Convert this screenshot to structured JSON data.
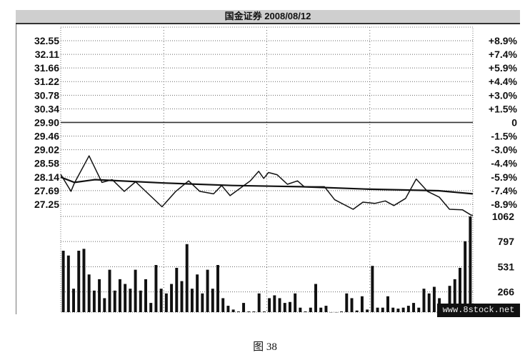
{
  "chart_data": {
    "type": "line",
    "title": "国金证券 2008/08/12",
    "prev_close": 29.9,
    "price_axis": {
      "ticks": [
        "32.55",
        "32.11",
        "31.66",
        "31.22",
        "30.78",
        "30.34",
        "29.90",
        "29.46",
        "29.02",
        "28.58",
        "28.14",
        "27.69",
        "27.25"
      ],
      "range": [
        27.25,
        32.55
      ]
    },
    "percent_axis": {
      "ticks": [
        "+8.9%",
        "+7.4%",
        "+5.9%",
        "+4.4%",
        "+3.0%",
        "+1.5%",
        "0",
        "-1.5%",
        "-3.0%",
        "-4.4%",
        "-5.9%",
        "-7.4%",
        "-8.9%"
      ]
    },
    "volume_axis": {
      "ticks": [
        "1062",
        "797",
        "531",
        "266"
      ],
      "range": [
        0,
        1062
      ]
    },
    "x_range_minutes": [
      0,
      240
    ],
    "grid": true,
    "series": [
      {
        "x": [
          0,
          6,
          8,
          16.5,
          24,
          30,
          37,
          43.6,
          59,
          67,
          74.5,
          81,
          89,
          93.7,
          98.6,
          110.4,
          115.3,
          118.2,
          121,
          126,
          132,
          137.9,
          141.8,
          153.6,
          159.5,
          170.3,
          176,
          183,
          189,
          194,
          200.8,
          207,
          213.6,
          220.5,
          226.4,
          234,
          239,
          240
        ],
        "y": [
          28.23,
          27.68,
          27.95,
          28.83,
          27.97,
          28.06,
          27.68,
          27.99,
          27.18,
          27.68,
          28.02,
          27.68,
          27.6,
          27.87,
          27.54,
          28.02,
          28.33,
          28.1,
          28.29,
          28.22,
          27.91,
          28.02,
          27.83,
          27.83,
          27.41,
          27.1,
          27.33,
          27.29,
          27.37,
          27.22,
          27.45,
          28.08,
          27.68,
          27.49,
          27.1,
          27.08,
          26.91,
          26.91
        ]
      },
      {
        "x": [
          0,
          8,
          20,
          60,
          100,
          140,
          180,
          220,
          240
        ],
        "y": [
          28.14,
          27.97,
          28.06,
          27.95,
          27.87,
          27.83,
          27.75,
          27.7,
          27.6
        ]
      }
    ],
    "volume": [
      700,
      650,
      300,
      700,
      720,
      450,
      280,
      400,
      200,
      500,
      280,
      400,
      350,
      300,
      500,
      280,
      400,
      150,
      550,
      300,
      250,
      350,
      520,
      380,
      770,
      300,
      450,
      250,
      500,
      300,
      550,
      200,
      120,
      80,
      60,
      150,
      60,
      60,
      250,
      60,
      200,
      230,
      200,
      150,
      160,
      250,
      100,
      60,
      100,
      350,
      100,
      120,
      50,
      50,
      60,
      250,
      200,
      70,
      220,
      80,
      540,
      100,
      100,
      220,
      100,
      90,
      100,
      120,
      150,
      100,
      300,
      250,
      320,
      200,
      120,
      330,
      400,
      520,
      800,
      1062
    ],
    "watermark": "www.8stock.net"
  },
  "caption": "图 38",
  "colors": {
    "line": "#111111",
    "grid": "#555555",
    "titlebar": "#cfcfcf"
  }
}
